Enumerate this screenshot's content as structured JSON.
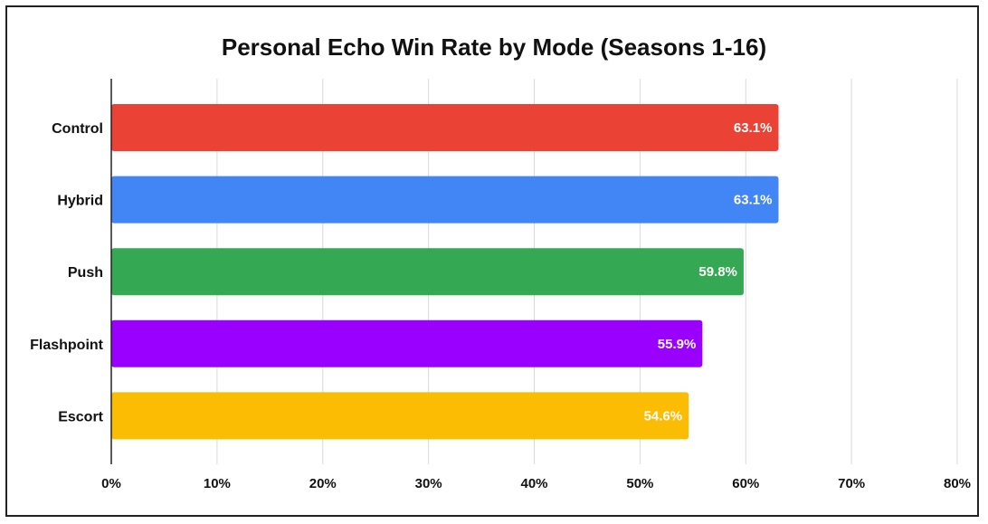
{
  "chart_data": {
    "type": "bar",
    "orientation": "horizontal",
    "title": "Personal Echo Win Rate by Mode (Seasons 1-16)",
    "xlabel": "",
    "ylabel": "",
    "categories": [
      "Control",
      "Hybrid",
      "Push",
      "Flashpoint",
      "Escort"
    ],
    "values": [
      63.1,
      63.1,
      59.8,
      55.9,
      54.6
    ],
    "data_labels": [
      "63.1%",
      "63.1%",
      "59.8%",
      "55.9%",
      "54.6%"
    ],
    "colors": [
      "#EA4335",
      "#4285F4",
      "#34A853",
      "#9900FF",
      "#FBBC04"
    ],
    "xlim": [
      0,
      80
    ],
    "ticks": [
      0,
      10,
      20,
      30,
      40,
      50,
      60,
      70,
      80
    ],
    "tick_labels": [
      "0%",
      "10%",
      "20%",
      "30%",
      "40%",
      "50%",
      "60%",
      "70%",
      "80%"
    ],
    "grid": true,
    "legend": "none"
  }
}
